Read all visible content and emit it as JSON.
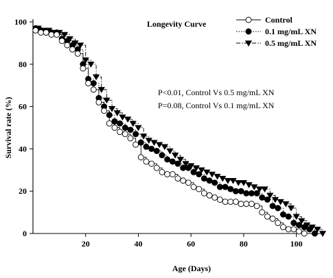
{
  "chart_data": {
    "type": "line",
    "title": "Longevity Curve",
    "xlabel": "Age (Days)",
    "ylabel": "Survival rate (%)",
    "xlim": [
      0,
      110
    ],
    "ylim": [
      0,
      100
    ],
    "xticks": [
      20,
      40,
      60,
      80,
      100
    ],
    "yticks": [
      0,
      20,
      40,
      60,
      80,
      100
    ],
    "legend_position": "top-right",
    "annotations": [
      "P<0.01, Control Vs 0.5 mg/mL XN",
      "P=0.08, Control Vs 0.1 mg/mL XN"
    ],
    "series": [
      {
        "name": "Control",
        "marker": "open-circle",
        "line_style": "solid",
        "color": "#000000",
        "x": [
          1,
          3,
          5,
          7,
          9,
          11,
          13,
          15,
          17,
          19,
          21,
          23,
          25,
          27,
          29,
          31,
          33,
          35,
          37,
          39,
          41,
          43,
          45,
          47,
          49,
          51,
          53,
          55,
          57,
          59,
          61,
          63,
          65,
          67,
          69,
          71,
          73,
          75,
          77,
          79,
          81,
          83,
          85,
          87,
          89,
          91,
          93,
          95,
          97,
          99,
          101,
          103
        ],
        "y": [
          96,
          95,
          95,
          94,
          94,
          91,
          89,
          87,
          85,
          78,
          71,
          68,
          62,
          58,
          52,
          50,
          48,
          47,
          45,
          42,
          36,
          34,
          33,
          31,
          29,
          28,
          28,
          26,
          25,
          24,
          22,
          21,
          19,
          18,
          17,
          16,
          15,
          15,
          15,
          14,
          14,
          14,
          13,
          10,
          8,
          7,
          5,
          3,
          2,
          2,
          1,
          0
        ]
      },
      {
        "name": "0.1 mg/mL XN",
        "marker": "filled-circle",
        "line_style": "dotted",
        "color": "#000000",
        "x": [
          1,
          3,
          5,
          7,
          9,
          11,
          13,
          15,
          17,
          19,
          21,
          23,
          25,
          27,
          29,
          31,
          33,
          35,
          37,
          39,
          41,
          43,
          45,
          47,
          49,
          51,
          53,
          55,
          57,
          59,
          61,
          63,
          65,
          67,
          69,
          71,
          73,
          75,
          77,
          79,
          81,
          83,
          85,
          87,
          89,
          91,
          93,
          95,
          97,
          99,
          101,
          103,
          105,
          107
        ],
        "y": [
          97,
          96,
          95,
          95,
          95,
          92,
          91,
          89,
          87,
          80,
          73,
          71,
          64,
          60,
          56,
          53,
          52,
          50,
          49,
          47,
          43,
          41,
          40,
          39,
          37,
          35,
          34,
          33,
          31,
          31,
          29,
          28,
          26,
          25,
          24,
          22,
          22,
          21,
          20,
          20,
          19,
          19,
          19,
          17,
          16,
          13,
          12,
          9,
          8,
          5,
          4,
          3,
          2,
          0
        ]
      },
      {
        "name": "0.5 mg/mL XN",
        "marker": "filled-triangle-down",
        "line_style": "dash-dot",
        "color": "#000000",
        "x": [
          2,
          4,
          6,
          8,
          10,
          12,
          14,
          16,
          18,
          20,
          22,
          24,
          26,
          28,
          30,
          32,
          34,
          36,
          38,
          40,
          42,
          44,
          46,
          48,
          50,
          52,
          54,
          56,
          58,
          60,
          62,
          64,
          66,
          68,
          70,
          72,
          74,
          76,
          78,
          80,
          82,
          84,
          86,
          88,
          90,
          92,
          94,
          96,
          98,
          100,
          102,
          104,
          106,
          108,
          110
        ],
        "y": [
          97,
          96,
          96,
          95,
          95,
          94,
          92,
          90,
          89,
          82,
          80,
          74,
          68,
          63,
          59,
          57,
          55,
          54,
          52,
          50,
          46,
          44,
          43,
          42,
          41,
          39,
          37,
          35,
          33,
          32,
          31,
          30,
          29,
          28,
          27,
          26,
          25,
          25,
          24,
          24,
          23,
          22,
          21,
          21,
          18,
          16,
          15,
          14,
          12,
          8,
          6,
          4,
          3,
          2,
          0
        ]
      }
    ]
  }
}
